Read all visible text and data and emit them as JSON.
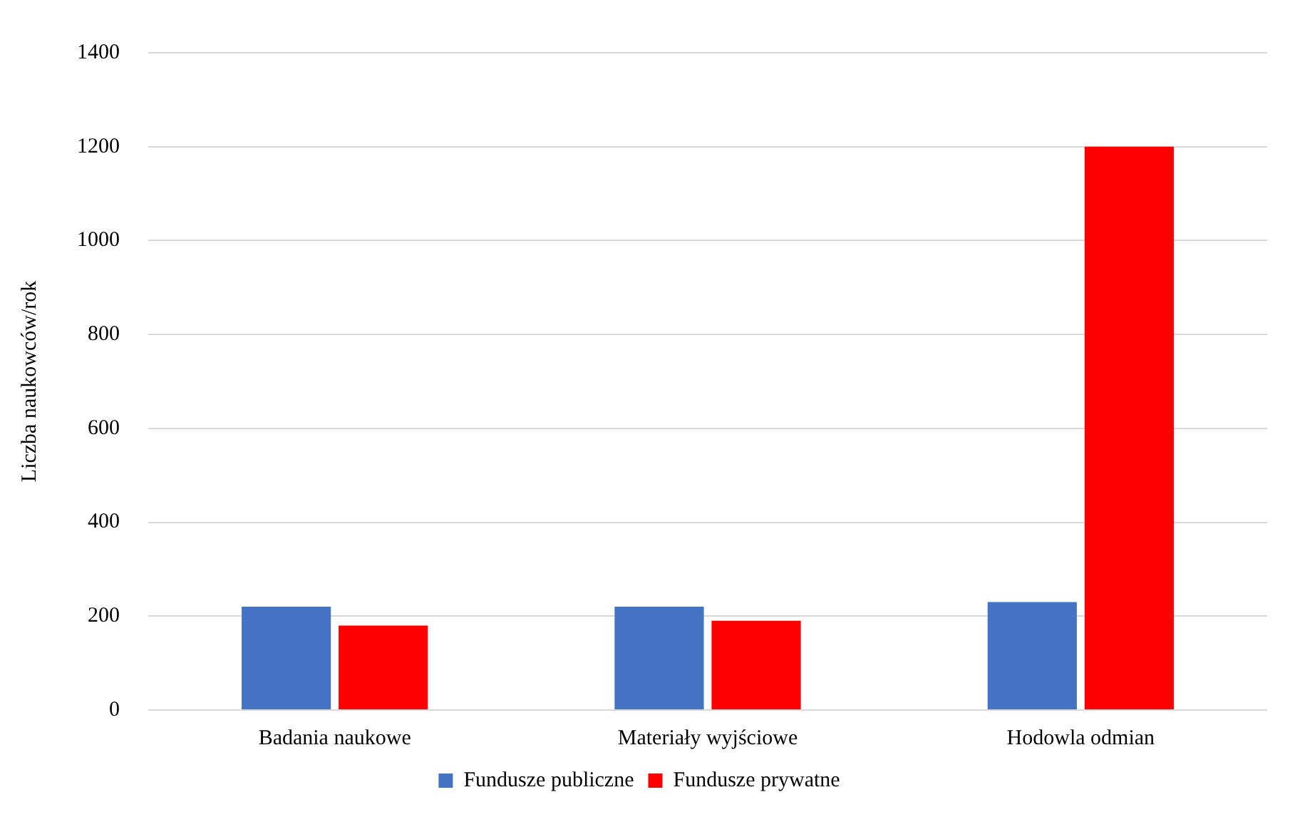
{
  "chart_data": {
    "type": "bar",
    "ylabel": "Liczba naukowców/rok",
    "categories": [
      "Badania naukowe",
      "Materiały wyjściowe",
      "Hodowla odmian"
    ],
    "series": [
      {
        "name": "Fundusze publiczne",
        "color": "#4472c4",
        "values": [
          220,
          220,
          230
        ]
      },
      {
        "name": "Fundusze prywatne",
        "color": "#ff0000",
        "values": [
          180,
          190,
          1200
        ]
      }
    ],
    "ylim": [
      0,
      1400
    ],
    "yticks": [
      0,
      200,
      400,
      600,
      800,
      1000,
      1200,
      1400
    ],
    "grid": "y",
    "legend": "bottom"
  }
}
